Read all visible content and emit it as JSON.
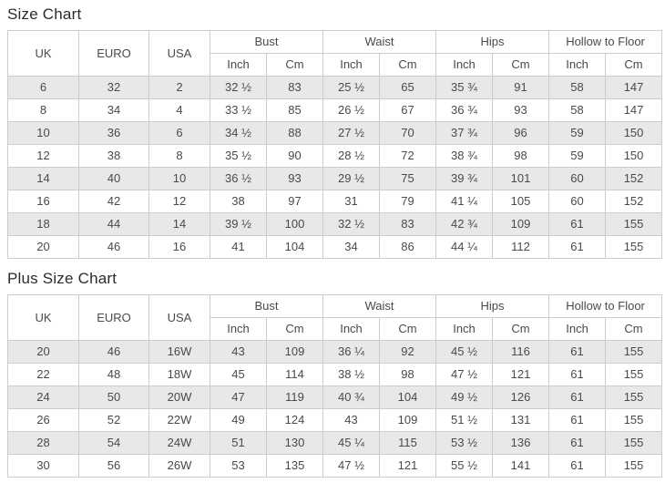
{
  "colors": {
    "stripe_row": "#e8e8e8",
    "table_border": "#cccccc",
    "text": "#4a4a4a",
    "title_text": "#2b2b2b",
    "background": "#ffffff"
  },
  "chart_data": [
    {
      "type": "table",
      "title": "Size Chart",
      "main_headers": [
        "UK",
        "EURO",
        "USA"
      ],
      "group_headers": [
        "Bust",
        "Waist",
        "Hips",
        "Hollow to Floor"
      ],
      "unit_headers": [
        "Inch",
        "Cm",
        "Inch",
        "Cm",
        "Inch",
        "Cm",
        "Inch",
        "Cm"
      ],
      "rows": [
        [
          "6",
          "32",
          "2",
          "32 ½",
          "83",
          "25 ½",
          "65",
          "35 ¾",
          "91",
          "58",
          "147"
        ],
        [
          "8",
          "34",
          "4",
          "33 ½",
          "85",
          "26 ½",
          "67",
          "36 ¾",
          "93",
          "58",
          "147"
        ],
        [
          "10",
          "36",
          "6",
          "34 ½",
          "88",
          "27 ½",
          "70",
          "37 ¾",
          "96",
          "59",
          "150"
        ],
        [
          "12",
          "38",
          "8",
          "35 ½",
          "90",
          "28 ½",
          "72",
          "38 ¾",
          "98",
          "59",
          "150"
        ],
        [
          "14",
          "40",
          "10",
          "36 ½",
          "93",
          "29 ½",
          "75",
          "39 ¾",
          "101",
          "60",
          "152"
        ],
        [
          "16",
          "42",
          "12",
          "38",
          "97",
          "31",
          "79",
          "41 ¼",
          "105",
          "60",
          "152"
        ],
        [
          "18",
          "44",
          "14",
          "39 ½",
          "100",
          "32 ½",
          "83",
          "42 ¾",
          "109",
          "61",
          "155"
        ],
        [
          "20",
          "46",
          "16",
          "41",
          "104",
          "34",
          "86",
          "44 ¼",
          "112",
          "61",
          "155"
        ]
      ]
    },
    {
      "type": "table",
      "title": "Plus Size Chart",
      "main_headers": [
        "UK",
        "EURO",
        "USA"
      ],
      "group_headers": [
        "Bust",
        "Waist",
        "Hips",
        "Hollow to Floor"
      ],
      "unit_headers": [
        "Inch",
        "Cm",
        "Inch",
        "Cm",
        "Inch",
        "Cm",
        "Inch",
        "Cm"
      ],
      "rows": [
        [
          "20",
          "46",
          "16W",
          "43",
          "109",
          "36 ¼",
          "92",
          "45 ½",
          "116",
          "61",
          "155"
        ],
        [
          "22",
          "48",
          "18W",
          "45",
          "114",
          "38 ½",
          "98",
          "47 ½",
          "121",
          "61",
          "155"
        ],
        [
          "24",
          "50",
          "20W",
          "47",
          "119",
          "40 ¾",
          "104",
          "49 ½",
          "126",
          "61",
          "155"
        ],
        [
          "26",
          "52",
          "22W",
          "49",
          "124",
          "43",
          "109",
          "51 ½",
          "131",
          "61",
          "155"
        ],
        [
          "28",
          "54",
          "24W",
          "51",
          "130",
          "45 ¼",
          "115",
          "53 ½",
          "136",
          "61",
          "155"
        ],
        [
          "30",
          "56",
          "26W",
          "53",
          "135",
          "47 ½",
          "121",
          "55 ½",
          "141",
          "61",
          "155"
        ]
      ]
    }
  ]
}
